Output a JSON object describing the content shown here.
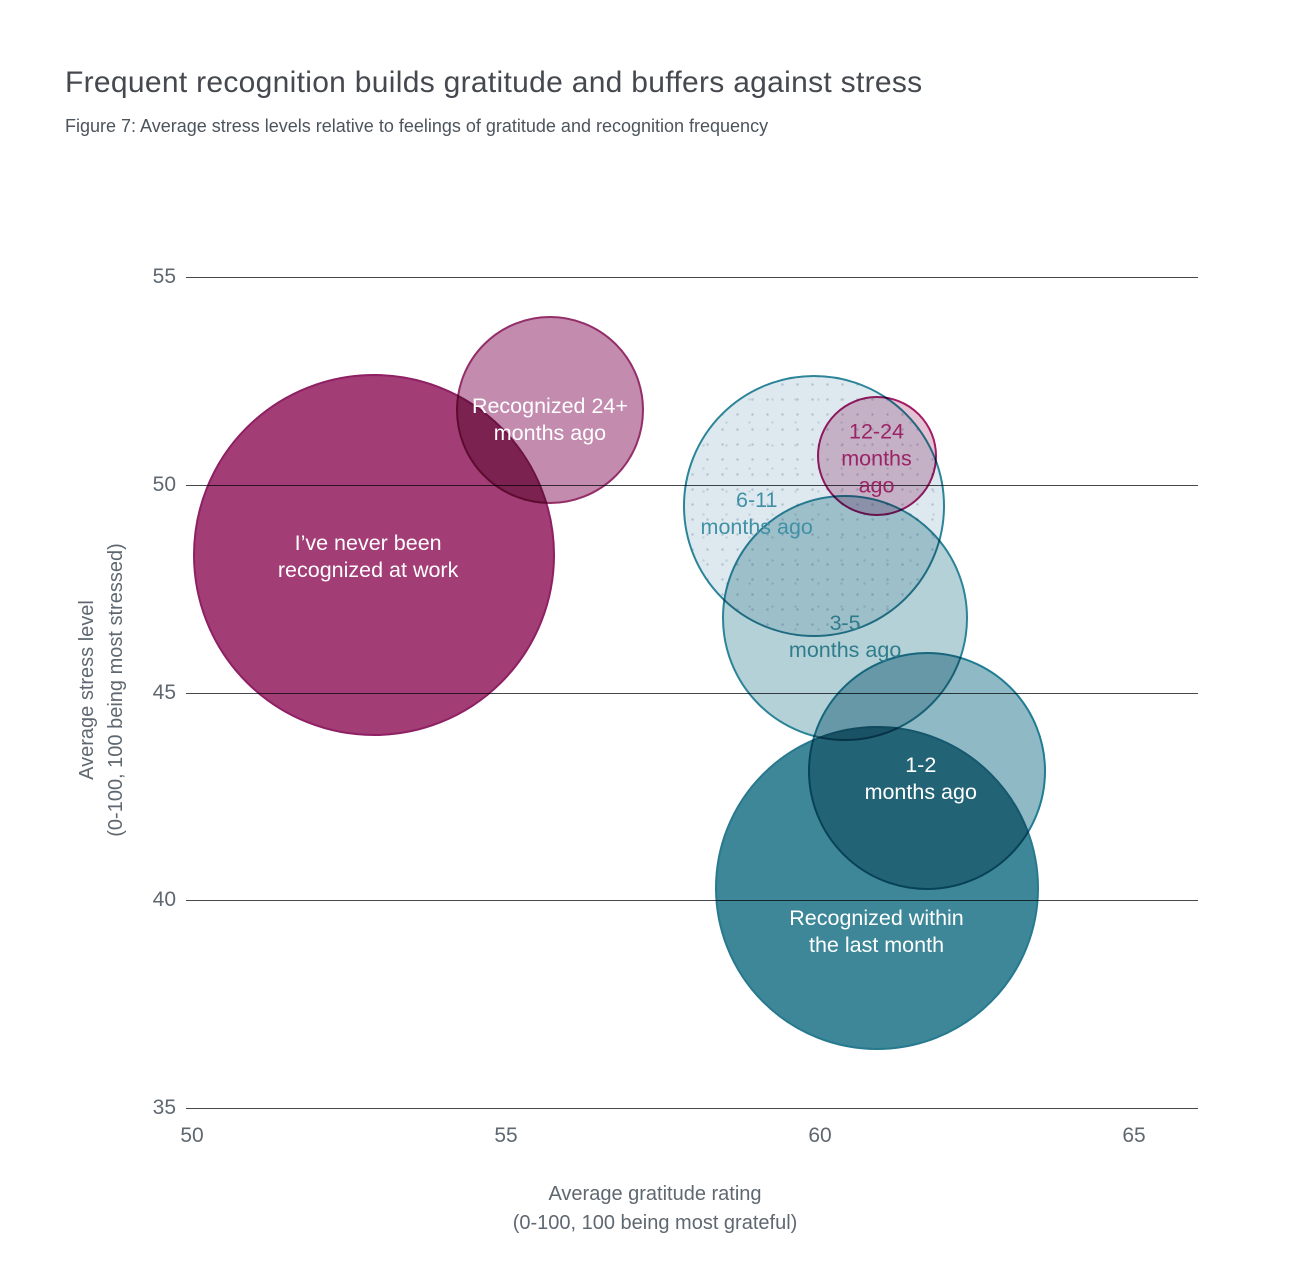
{
  "page": {
    "title": "Frequent recognition builds gratitude and buffers against stress",
    "subtitle": "Figure 7: Average stress levels relative to feelings of gratitude and recognition frequency"
  },
  "axes": {
    "xlabel_line1": "Average gratitude rating",
    "xlabel_line2": "(0-100, 100 being most grateful)",
    "ylabel_line1": "Average stress level",
    "ylabel_line2": "(0-100, 100 being most stressed)"
  },
  "colors": {
    "title_text": "#45494f",
    "subtitle_text": "#4c545c",
    "axis_text": "#5f6870",
    "gridline": "#46484b",
    "background": "#ffffff"
  },
  "chart_data": {
    "type": "scatter",
    "subtype": "bubble",
    "title": "Frequent recognition builds gratitude and buffers against stress",
    "xlabel": "Average gratitude rating (0-100, 100 being most grateful)",
    "ylabel": "Average stress level (0-100, 100 being most stressed)",
    "xlim": [
      49.9,
      66.0
    ],
    "ylim": [
      35,
      55
    ],
    "x_ticks": [
      50,
      55,
      60,
      65
    ],
    "y_ticks": [
      55,
      50,
      45,
      40,
      35
    ],
    "grid": "horizontal",
    "legend": "labels-on-bubbles",
    "series": [
      {
        "id": "never-recognized",
        "name": "I've never been recognized at work",
        "gratitude": 52.9,
        "stress": 48.3,
        "radius_px": 181,
        "fill": "#a23d75",
        "border": "#8e2063",
        "pattern": "solid",
        "label_lines": [
          "I’ve never been",
          "recognized at work"
        ],
        "label_color": "#ffffff",
        "label_dx": -6,
        "label_dy": 2
      },
      {
        "id": "recognized-24plus-months",
        "name": "Recognized 24+ months ago",
        "gratitude": 55.7,
        "stress": 51.8,
        "radius_px": 94,
        "fill": "#c38bae",
        "border": "#942e68",
        "pattern": "solid",
        "label_lines": [
          "Recognized 24+",
          "months ago"
        ],
        "label_color": "#ffffff",
        "label_dx": 0,
        "label_dy": 10
      },
      {
        "id": "recognized-6-11-months",
        "name": "6-11 months ago",
        "gratitude": 59.9,
        "stress": 49.5,
        "radius_px": 131,
        "fill": "#dde9ef",
        "border": "#2b8498",
        "pattern": "dotted",
        "label_lines": [
          "6-11",
          "months ago"
        ],
        "label_color": "#4191a6",
        "label_dx": -57,
        "label_dy": 8
      },
      {
        "id": "recognized-12-24-months",
        "name": "12-24 months ago",
        "gratitude": 60.9,
        "stress": 50.7,
        "radius_px": 60,
        "fill": "#e3c2d4",
        "border": "#a41a64",
        "pattern": "solid",
        "label_lines": [
          "12-24",
          "months",
          "ago"
        ],
        "label_color": "#9c2366",
        "label_dx": 0,
        "label_dy": 3
      },
      {
        "id": "recognized-3-5-months",
        "name": "3-5 months ago",
        "gratitude": 60.4,
        "stress": 46.8,
        "radius_px": 123,
        "fill": "#b5d1d8",
        "border": "#2b8498",
        "pattern": "solid",
        "label_lines": [
          "3-5",
          "months ago"
        ],
        "label_color": "#2f7d8c",
        "label_dx": 0,
        "label_dy": 19
      },
      {
        "id": "recognized-last-month",
        "name": "Recognized within the last month",
        "gratitude": 60.9,
        "stress": 40.3,
        "radius_px": 162,
        "fill": "#3d8799",
        "border": "#27798e",
        "pattern": "solid",
        "label_lines": [
          "Recognized within",
          "the last month"
        ],
        "label_color": "#ffffff",
        "label_dx": 0,
        "label_dy": 44
      },
      {
        "id": "recognized-1-2-months",
        "name": "1-2 months ago",
        "gratitude": 61.7,
        "stress": 43.1,
        "radius_px": 119,
        "fill": "#8fbac5",
        "border": "#1f7c92",
        "pattern": "solid",
        "label_lines": [
          "1-2",
          "months ago"
        ],
        "label_color": "#ffffff",
        "label_dx": -6,
        "label_dy": 8
      }
    ]
  }
}
